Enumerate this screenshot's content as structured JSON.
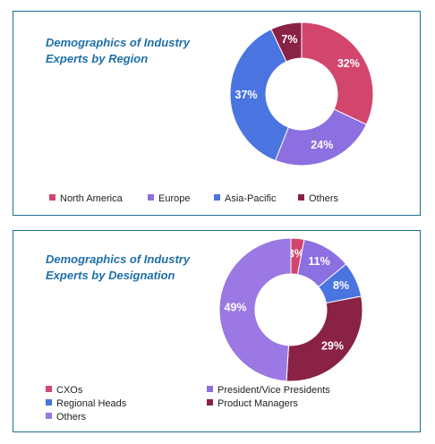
{
  "chart_data": [
    {
      "type": "pie",
      "title": "Demographics of Industry Experts by Region",
      "title_lines": [
        "Demographics of Industry",
        "Experts by Region"
      ],
      "categories": [
        "North America",
        "Europe",
        "Asia-Pacific",
        "Others"
      ],
      "values": [
        32,
        24,
        37,
        7
      ],
      "value_labels": [
        "32%",
        "24%",
        "37%",
        "7%"
      ],
      "colors": [
        "#d2466e",
        "#8c6fe0",
        "#4a74e0",
        "#8a2245"
      ],
      "donut": true,
      "legend_position": "bottom"
    },
    {
      "type": "pie",
      "title": "Demographics of Industry Experts by Designation",
      "title_lines": [
        "Demographics of Industry",
        "Experts by Designation"
      ],
      "categories": [
        "CXOs",
        "President/Vice Presidents",
        "Regional Heads",
        "Product Managers",
        "Others"
      ],
      "values": [
        3,
        11,
        8,
        29,
        49
      ],
      "value_labels": [
        "3%",
        "11%",
        "8%",
        "29%",
        "49%"
      ],
      "colors": [
        "#d2466e",
        "#8c6fe0",
        "#4a74e0",
        "#8a2245",
        "#9b78e3"
      ],
      "donut": true,
      "legend_position": "bottom"
    }
  ]
}
